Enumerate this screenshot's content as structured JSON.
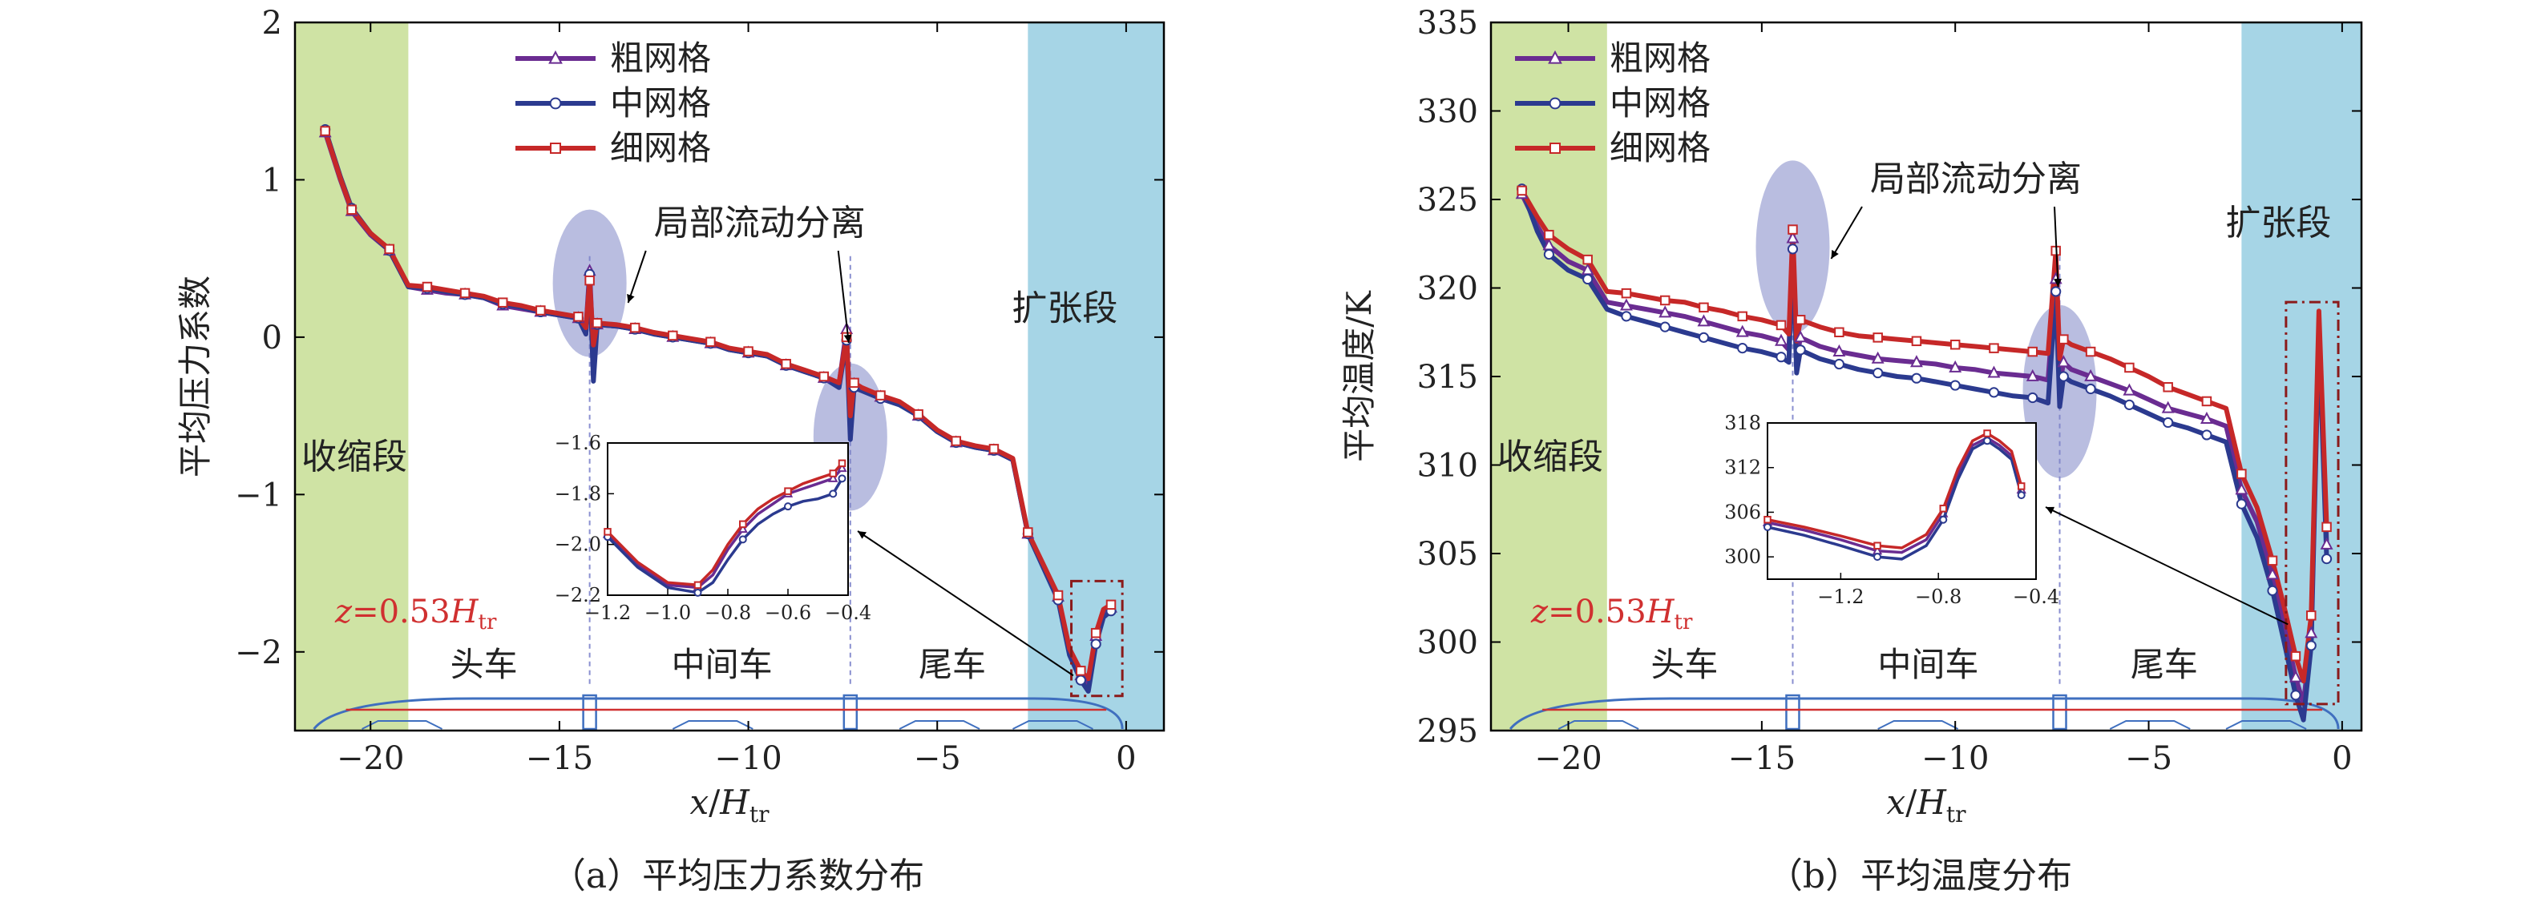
{
  "colors": {
    "coarse": "#6a2c91",
    "medium": "#2b3a8f",
    "fine": "#c62828",
    "contraction_bg": "#cfe3a4",
    "expansion_bg": "#a6d5e6",
    "highlight": "#7f86c7",
    "train": "#3f6fbf",
    "train_line": "#d03030",
    "z_label": "#d03030",
    "dashed": "#8a8fd0",
    "box": "#8b1a1a"
  },
  "icons": {
    "coarse_marker": "triangle-icon",
    "medium_marker": "circle-icon",
    "fine_marker": "square-icon"
  },
  "chart_data": [
    {
      "type": "line",
      "caption": "（a）平均压力系数分布",
      "xlabel": {
        "var": "x",
        "sub": "tr",
        "den": "H"
      },
      "ylabel": "平均压力系数",
      "xlim": [
        -22,
        1
      ],
      "ylim": [
        -2.5,
        2
      ],
      "xticks": [
        -20,
        -15,
        -10,
        -5,
        0
      ],
      "yticks": [
        -2,
        -1,
        0,
        1,
        2
      ],
      "xtick_labels": [
        "−20",
        "−15",
        "−10",
        "−5",
        "0"
      ],
      "ytick_labels": [
        "−2",
        "−1",
        "0",
        "1",
        "2"
      ],
      "legend": [
        "粗网格",
        "中网格",
        "细网格"
      ],
      "regions": {
        "contraction": [
          -22,
          -19
        ],
        "expansion": [
          -2.6,
          1
        ]
      },
      "region_labels": {
        "contraction": "收缩段",
        "expansion": "扩张段"
      },
      "annotation": "局部流动分离",
      "z_label": {
        "var": "z",
        "value": "=0.53",
        "H": "H",
        "sub": "tr"
      },
      "car_labels": [
        "头车",
        "中间车",
        "尾车"
      ],
      "car_label_x": [
        -17,
        -10.7,
        -4.6
      ],
      "car_joints_x": [
        -14.2,
        -7.3
      ],
      "separation_x": [
        -14.2,
        -7.3
      ],
      "x": [
        -21.2,
        -20.8,
        -20.5,
        -20.0,
        -19.5,
        -19.0,
        -18.5,
        -18.0,
        -17.5,
        -17.0,
        -16.5,
        -16.0,
        -15.5,
        -15.0,
        -14.5,
        -14.3,
        -14.2,
        -14.1,
        -14.0,
        -13.5,
        -13.0,
        -12.5,
        -12.0,
        -11.5,
        -11.0,
        -10.5,
        -10.0,
        -9.5,
        -9.0,
        -8.5,
        -8.0,
        -7.6,
        -7.4,
        -7.3,
        -7.2,
        -7.0,
        -6.5,
        -6.0,
        -5.5,
        -5.0,
        -4.5,
        -4.0,
        -3.5,
        -3.0,
        -2.6,
        -2.2,
        -1.8,
        -1.5,
        -1.2,
        -1.0,
        -0.8,
        -0.6,
        -0.4
      ],
      "series": [
        {
          "name": "粗网格",
          "marker": "triangle",
          "values": [
            1.3,
            1.0,
            0.8,
            0.65,
            0.55,
            0.32,
            0.3,
            0.28,
            0.27,
            0.25,
            0.2,
            0.18,
            0.16,
            0.14,
            0.12,
            0.05,
            0.42,
            -0.12,
            0.08,
            0.07,
            0.05,
            0.02,
            0.0,
            -0.02,
            -0.04,
            -0.08,
            -0.1,
            -0.12,
            -0.18,
            -0.22,
            -0.26,
            -0.3,
            0.05,
            -0.6,
            -0.3,
            -0.33,
            -0.38,
            -0.42,
            -0.5,
            -0.6,
            -0.67,
            -0.7,
            -0.72,
            -0.78,
            -1.25,
            -1.45,
            -1.65,
            -2.0,
            -2.15,
            -2.2,
            -1.9,
            -1.75,
            -1.72
          ]
        },
        {
          "name": "中网格",
          "marker": "circle",
          "values": [
            1.32,
            1.02,
            0.82,
            0.66,
            0.55,
            0.32,
            0.31,
            0.29,
            0.27,
            0.25,
            0.21,
            0.19,
            0.16,
            0.14,
            0.12,
            0.02,
            0.4,
            -0.28,
            0.08,
            0.07,
            0.05,
            0.02,
            0.0,
            -0.02,
            -0.04,
            -0.08,
            -0.1,
            -0.12,
            -0.18,
            -0.22,
            -0.26,
            -0.32,
            -0.02,
            -0.65,
            -0.32,
            -0.34,
            -0.39,
            -0.43,
            -0.5,
            -0.6,
            -0.67,
            -0.7,
            -0.72,
            -0.78,
            -1.25,
            -1.46,
            -1.67,
            -2.02,
            -2.18,
            -2.25,
            -1.95,
            -1.78,
            -1.74
          ]
        },
        {
          "name": "细网格",
          "marker": "square",
          "values": [
            1.31,
            1.01,
            0.81,
            0.66,
            0.56,
            0.33,
            0.32,
            0.3,
            0.28,
            0.26,
            0.22,
            0.2,
            0.17,
            0.15,
            0.13,
            0.06,
            0.36,
            -0.05,
            0.09,
            0.08,
            0.06,
            0.03,
            0.01,
            -0.01,
            -0.03,
            -0.07,
            -0.09,
            -0.11,
            -0.17,
            -0.21,
            -0.25,
            -0.29,
            0.0,
            -0.5,
            -0.29,
            -0.32,
            -0.37,
            -0.41,
            -0.49,
            -0.59,
            -0.66,
            -0.69,
            -0.71,
            -0.77,
            -1.24,
            -1.44,
            -1.64,
            -1.98,
            -2.12,
            -2.17,
            -1.88,
            -1.73,
            -1.7
          ]
        }
      ],
      "inset": {
        "xlim": [
          -1.2,
          -0.4
        ],
        "ylim": [
          -2.2,
          -1.6
        ],
        "xticks": [
          -1.2,
          -1.0,
          -0.8,
          -0.6,
          -0.4
        ],
        "yticks": [
          -2.2,
          -2.0,
          -1.8,
          -1.6
        ],
        "xtick_labels": [
          "−1.2",
          "−1.0",
          "−0.8",
          "−0.6",
          "−0.4"
        ],
        "ytick_labels": [
          "−2.2",
          "−2.0",
          "−1.8",
          "−1.6"
        ],
        "x": [
          -1.2,
          -1.1,
          -1.0,
          -0.9,
          -0.85,
          -0.8,
          -0.75,
          -0.7,
          -0.65,
          -0.6,
          -0.55,
          -0.5,
          -0.45,
          -0.42
        ],
        "series": [
          {
            "name": "粗网格",
            "values": [
              -1.96,
              -2.08,
              -2.16,
              -2.17,
              -2.12,
              -2.02,
              -1.94,
              -1.88,
              -1.84,
              -1.8,
              -1.78,
              -1.76,
              -1.74,
              -1.7
            ]
          },
          {
            "name": "中网格",
            "values": [
              -1.97,
              -2.09,
              -2.17,
              -2.19,
              -2.15,
              -2.06,
              -1.98,
              -1.92,
              -1.88,
              -1.85,
              -1.83,
              -1.82,
              -1.8,
              -1.74
            ]
          },
          {
            "name": "细网格",
            "values": [
              -1.95,
              -2.07,
              -2.15,
              -2.16,
              -2.1,
              -2.0,
              -1.92,
              -1.86,
              -1.82,
              -1.79,
              -1.76,
              -1.74,
              -1.72,
              -1.68
            ]
          }
        ]
      }
    },
    {
      "type": "line",
      "caption": "（b）平均温度分布",
      "xlabel": {
        "var": "x",
        "sub": "tr",
        "den": "H"
      },
      "ylabel": "平均温度/K",
      "xlim": [
        -22,
        0.5
      ],
      "ylim": [
        295,
        335
      ],
      "xticks": [
        -20,
        -15,
        -10,
        -5,
        0
      ],
      "yticks": [
        295,
        300,
        305,
        310,
        315,
        320,
        325,
        330,
        335
      ],
      "xtick_labels": [
        "−20",
        "−15",
        "−10",
        "−5",
        "0"
      ],
      "ytick_labels": [
        "295",
        "300",
        "305",
        "310",
        "315",
        "320",
        "325",
        "330",
        "335"
      ],
      "legend": [
        "粗网格",
        "中网格",
        "细网格"
      ],
      "regions": {
        "contraction": [
          -22,
          -19
        ],
        "expansion": [
          -2.6,
          0.5
        ]
      },
      "region_labels": {
        "contraction": "收缩段",
        "expansion": "扩张段"
      },
      "annotation": "局部流动分离",
      "z_label": {
        "var": "z",
        "value": "=0.53",
        "H": "H",
        "sub": "tr"
      },
      "car_labels": [
        "头车",
        "中间车",
        "尾车"
      ],
      "car_label_x": [
        -17,
        -10.7,
        -4.6
      ],
      "car_joints_x": [
        -14.2,
        -7.3
      ],
      "separation_x": [
        -14.2,
        -7.3
      ],
      "x": [
        -21.2,
        -20.8,
        -20.5,
        -20.0,
        -19.5,
        -19.0,
        -18.5,
        -18.0,
        -17.5,
        -17.0,
        -16.5,
        -16.0,
        -15.5,
        -15.0,
        -14.5,
        -14.3,
        -14.2,
        -14.1,
        -14.0,
        -13.5,
        -13.0,
        -12.5,
        -12.0,
        -11.5,
        -11.0,
        -10.5,
        -10.0,
        -9.5,
        -9.0,
        -8.5,
        -8.0,
        -7.6,
        -7.4,
        -7.3,
        -7.2,
        -7.0,
        -6.5,
        -6.0,
        -5.5,
        -5.0,
        -4.5,
        -4.0,
        -3.5,
        -3.0,
        -2.6,
        -2.2,
        -1.8,
        -1.5,
        -1.2,
        -1.0,
        -0.8,
        -0.6,
        -0.4
      ],
      "series": [
        {
          "name": "粗网格",
          "marker": "triangle",
          "values": [
            325.3,
            323.5,
            322.4,
            321.5,
            321.0,
            319.2,
            319.0,
            318.8,
            318.6,
            318.4,
            318.1,
            317.8,
            317.5,
            317.3,
            317.0,
            316.5,
            322.8,
            316.0,
            317.2,
            316.7,
            316.4,
            316.2,
            316.0,
            315.9,
            315.8,
            315.7,
            315.5,
            315.4,
            315.2,
            315.1,
            315.0,
            314.8,
            320.5,
            314.5,
            315.8,
            315.4,
            315.0,
            314.6,
            314.2,
            313.7,
            313.2,
            312.9,
            312.6,
            312.2,
            308.6,
            306.8,
            303.8,
            301.0,
            298.0,
            296.5,
            300.5,
            318.0,
            305.5
          ]
        },
        {
          "name": "中网格",
          "marker": "circle",
          "values": [
            325.6,
            323.2,
            321.9,
            321.0,
            320.5,
            318.8,
            318.4,
            318.1,
            317.8,
            317.5,
            317.2,
            316.9,
            316.6,
            316.4,
            316.1,
            315.8,
            322.2,
            315.2,
            316.5,
            316.0,
            315.7,
            315.4,
            315.2,
            315.0,
            314.9,
            314.7,
            314.5,
            314.3,
            314.1,
            313.9,
            313.8,
            313.5,
            319.8,
            313.3,
            315.0,
            314.7,
            314.3,
            313.9,
            313.4,
            312.9,
            312.4,
            312.1,
            311.7,
            311.3,
            307.8,
            305.9,
            302.9,
            300.0,
            297.0,
            295.6,
            299.8,
            317.5,
            304.7
          ]
        },
        {
          "name": "细网格",
          "marker": "square",
          "values": [
            325.5,
            324.0,
            323.0,
            322.2,
            321.6,
            319.8,
            319.7,
            319.5,
            319.3,
            319.2,
            318.9,
            318.7,
            318.4,
            318.2,
            317.9,
            317.4,
            323.3,
            317.0,
            318.2,
            317.8,
            317.5,
            317.3,
            317.2,
            317.1,
            317.0,
            316.9,
            316.8,
            316.7,
            316.6,
            316.5,
            316.4,
            316.3,
            322.1,
            316.0,
            317.1,
            316.8,
            316.4,
            316.0,
            315.5,
            315.0,
            314.4,
            314.0,
            313.6,
            313.2,
            309.5,
            307.6,
            304.6,
            302.0,
            299.2,
            297.8,
            301.5,
            318.7,
            306.5
          ]
        }
      ],
      "inset": {
        "xlim": [
          -1.5,
          -0.4
        ],
        "ylim": [
          297,
          318
        ],
        "xticks": [
          -1.2,
          -0.8,
          -0.4
        ],
        "yticks": [
          300,
          306,
          312,
          318
        ],
        "xtick_labels": [
          "−1.2",
          "−0.8",
          "−0.4"
        ],
        "ytick_labels": [
          "300",
          "306",
          "312",
          "318"
        ],
        "x": [
          -1.5,
          -1.35,
          -1.2,
          -1.05,
          -0.95,
          -0.85,
          -0.78,
          -0.72,
          -0.66,
          -0.6,
          -0.55,
          -0.5,
          -0.46
        ],
        "series": [
          {
            "name": "粗网格",
            "values": [
              304.6,
              303.6,
              302.3,
              300.8,
              300.6,
              302.3,
              305.8,
              311.0,
              315.0,
              316.0,
              315.0,
              313.6,
              309.0
            ]
          },
          {
            "name": "中网格",
            "values": [
              304.0,
              302.9,
              301.5,
              300.0,
              299.7,
              301.5,
              305.0,
              310.4,
              314.5,
              315.6,
              314.5,
              313.1,
              308.3
            ]
          },
          {
            "name": "细网格",
            "values": [
              305.0,
              304.0,
              302.8,
              301.5,
              301.2,
              303.0,
              306.5,
              311.8,
              315.6,
              316.6,
              315.6,
              314.2,
              309.5
            ]
          }
        ]
      }
    }
  ]
}
